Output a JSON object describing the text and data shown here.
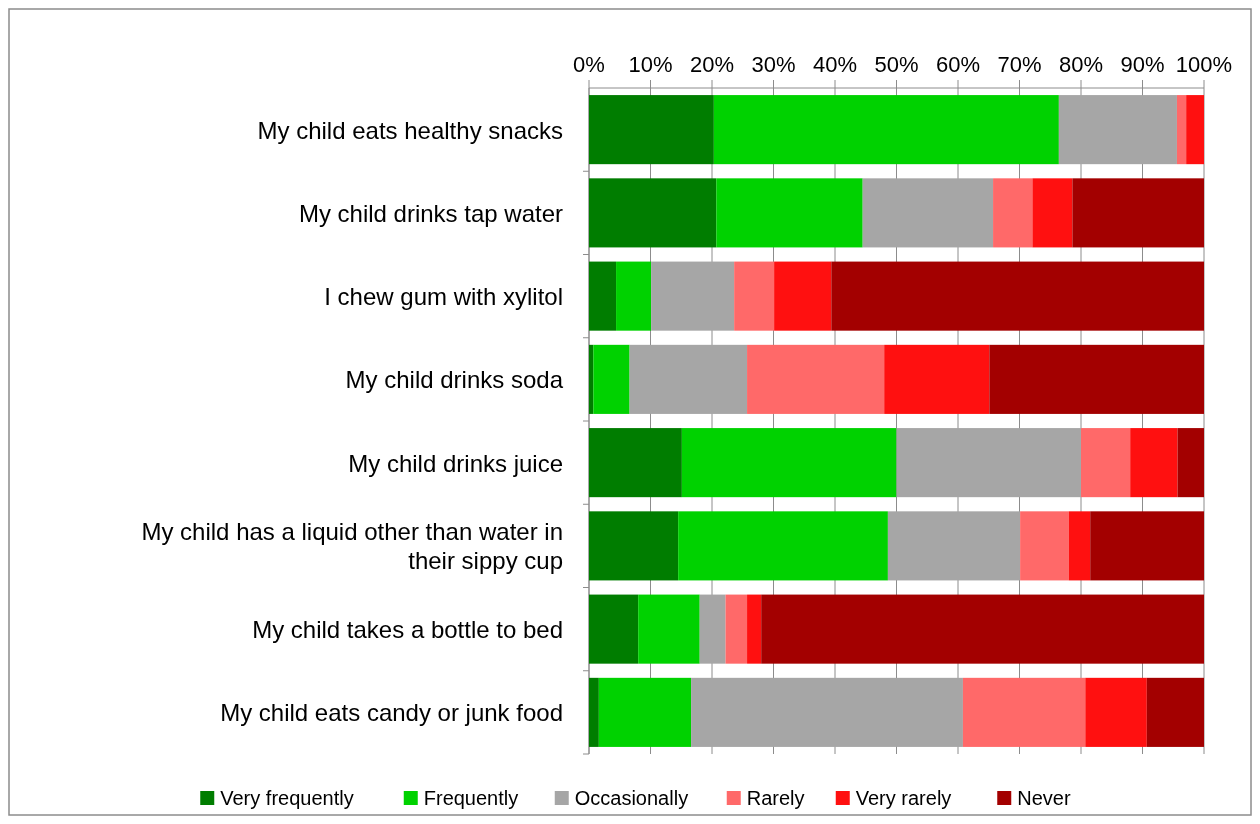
{
  "chart_data": {
    "type": "bar",
    "orientation": "horizontal",
    "stacked": true,
    "categories": [
      "My child eats healthy snacks",
      "My child drinks tap water",
      "I chew gum with xylitol",
      "My child drinks soda",
      "My child drinks juice",
      "My child has a liquid other than water in their sippy cup",
      "My child takes a bottle to bed",
      "My child eats candy or junk food"
    ],
    "series": [
      {
        "name": "Very frequently",
        "color": "#007d00",
        "values": [
          20.3,
          20.7,
          4.4,
          0.7,
          15.1,
          14.5,
          8.0,
          1.6
        ]
      },
      {
        "name": "Frequently",
        "color": "#00d200",
        "values": [
          56.1,
          23.8,
          5.7,
          5.9,
          34.9,
          34.1,
          10.0,
          15.0
        ]
      },
      {
        "name": "Occasionally",
        "color": "#a6a6a6",
        "values": [
          19.2,
          21.2,
          13.5,
          19.1,
          30.0,
          21.5,
          4.2,
          44.2
        ]
      },
      {
        "name": "Rarely",
        "color": "#ff6969",
        "values": [
          1.5,
          6.4,
          6.5,
          22.3,
          8.0,
          7.9,
          3.5,
          19.9
        ]
      },
      {
        "name": "Very rarely",
        "color": "#ff1010",
        "values": [
          2.9,
          6.5,
          9.3,
          17.1,
          7.7,
          3.5,
          2.3,
          10.0
        ]
      },
      {
        "name": "Never",
        "color": "#a30000",
        "values": [
          0,
          21.4,
          60.6,
          34.9,
          4.3,
          18.5,
          72.0,
          9.3
        ]
      }
    ],
    "xlim": [
      0,
      100
    ],
    "xticks": [
      {
        "value": 0,
        "label": "0%"
      },
      {
        "value": 10,
        "label": "10%"
      },
      {
        "value": 20,
        "label": "20%"
      },
      {
        "value": 30,
        "label": "30%"
      },
      {
        "value": 40,
        "label": "40%"
      },
      {
        "value": 50,
        "label": "50%"
      },
      {
        "value": 60,
        "label": "60%"
      },
      {
        "value": 70,
        "label": "70%"
      },
      {
        "value": 80,
        "label": "80%"
      },
      {
        "value": 90,
        "label": "90%"
      },
      {
        "value": 100,
        "label": "100%"
      }
    ],
    "grid": "x",
    "legend": "bottom"
  }
}
